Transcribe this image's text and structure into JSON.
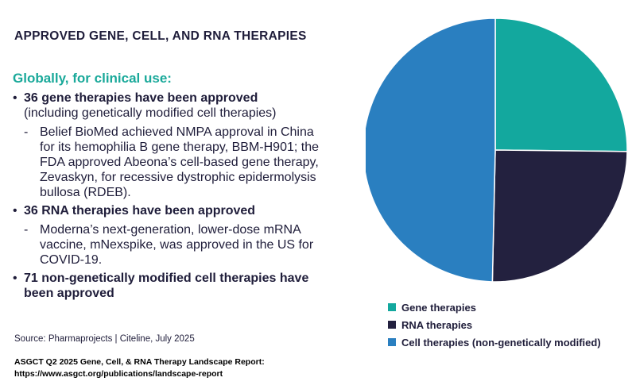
{
  "header": {
    "title": "APPROVED GENE, CELL, AND RNA THERAPIES"
  },
  "body": {
    "intro": "Globally, for clinical use:",
    "bullets": [
      {
        "bold": "36 gene therapies have been approved",
        "plain": "(including genetically modified cell therapies)",
        "sub": "Belief BioMed achieved NMPA approval in China for its hemophilia B gene therapy, BBM-H901; the FDA approved Abeona’s cell-based gene therapy, Zevaskyn, for recessive dystrophic epidermolysis bullosa (RDEB)."
      },
      {
        "bold": "36 RNA therapies have been approved",
        "sub": "Moderna’s next-generation, lower-dose mRNA vaccine, mNexspike, was approved in the US for COVID-19."
      },
      {
        "bold": "71 non-genetically modified cell therapies have been approved"
      }
    ]
  },
  "source": "Source: Pharmaprojects | Citeline, July 2025",
  "footer": {
    "line1": "ASGCT Q2 2025 Gene, Cell, & RNA Therapy Landscape Report:",
    "line2": "https://www.asgct.org/publications/landscape-report"
  },
  "chart_data": {
    "type": "pie",
    "slices": [
      {
        "label": "Gene therapies",
        "value": 36,
        "color": "#13a89e"
      },
      {
        "label": "RNA therapies",
        "value": 36,
        "color": "#23213f"
      },
      {
        "label": "Cell therapies (non-genetically modified)",
        "value": 71,
        "color": "#2a7fc0"
      }
    ],
    "start_angle_deg": 0,
    "direction": "clockwise",
    "legend_position": "bottom"
  }
}
